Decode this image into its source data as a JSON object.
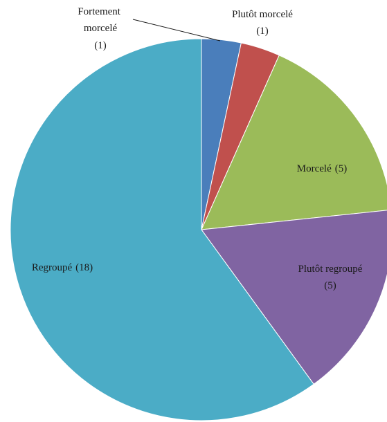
{
  "chart_data": {
    "type": "pie",
    "categories": [
      "Fortement morcelé",
      "Plutôt morcelé",
      "Morcelé",
      "Plutôt regroupé",
      "Regroupé"
    ],
    "values": [
      1,
      1,
      5,
      5,
      18
    ],
    "value_labels": [
      "(1)",
      "(1)",
      "(5)",
      "(5)",
      "(18)"
    ],
    "colors": [
      "#4a7ebb",
      "#c0504d",
      "#9bbb59",
      "#8064a2",
      "#4bacc6"
    ]
  }
}
